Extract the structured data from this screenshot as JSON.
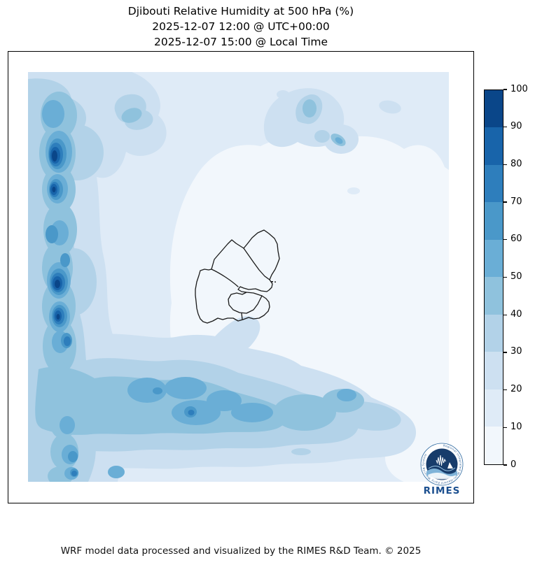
{
  "title": {
    "line1": "Djibouti Relative Humidity at 500 hPa (%)",
    "line2": "2025-12-07 12:00 @ UTC+00:00",
    "line3": "2025-12-07 15:00 @ Local Time"
  },
  "footer": {
    "credit": "WRF model data processed and visualized by the RIMES R&D Team. © 2025"
  },
  "colorbar": {
    "tick_labels": [
      "100",
      "90",
      "80",
      "70",
      "60",
      "50",
      "40",
      "30",
      "20",
      "10",
      "0"
    ]
  },
  "logo": {
    "ring_text": "Regional Integrated Multi-Hazard Early Warning System",
    "wordmark": "RIMES"
  },
  "chart_data": {
    "type": "heatmap",
    "title": "Djibouti Relative Humidity at 500 hPa (%)",
    "subtitle_utc": "2025-12-07 12:00 @ UTC+00:00",
    "subtitle_local": "2025-12-07 15:00 @ Local Time",
    "variable": "Relative Humidity",
    "units": "%",
    "pressure_level": "500 hPa",
    "colorbar_range": [
      0,
      100
    ],
    "colorbar_step": 10,
    "legend_position": "right",
    "grid": false,
    "palette": [
      "#f2f7fc",
      "#dfebf7",
      "#cde0f1",
      "#b2d2e8",
      "#8fc2dd",
      "#6aaed6",
      "#4a98c9",
      "#2e7ebc",
      "#1864aa",
      "#0a4689"
    ],
    "overlay": "Djibouti administrative boundary outlines (black) centered in domain; two small islands off the eastern coast",
    "regions": [
      {
        "area": "western edge, north and central cores",
        "humidity_pct": "70-100"
      },
      {
        "area": "west vertical band full height",
        "humidity_pct": "40-70"
      },
      {
        "area": "southern band across bottom third",
        "humidity_pct": "30-60 with small cores 60-80"
      },
      {
        "area": "north-central blob cluster",
        "humidity_pct": "20-50 with small 50-70 streak"
      },
      {
        "area": "top band and northeast area",
        "humidity_pct": "10-30"
      },
      {
        "area": "center around Djibouti outline and east side",
        "humidity_pct": "0-10"
      },
      {
        "area": "isolated small blob bottom center-right",
        "humidity_pct": "20-40"
      }
    ]
  }
}
